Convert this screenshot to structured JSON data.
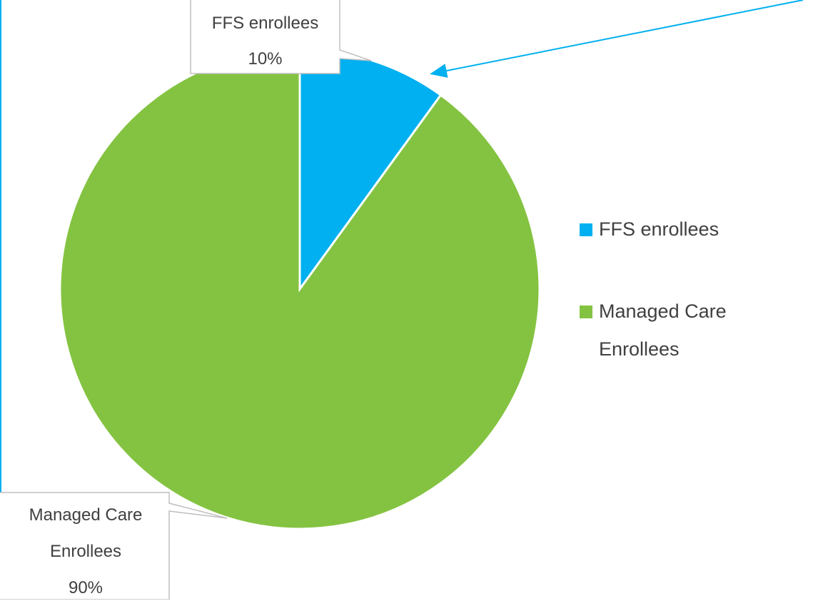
{
  "chart_data": {
    "type": "pie",
    "categories": [
      "FFS enrollees",
      "Managed Care Enrollees"
    ],
    "values": [
      10,
      90
    ],
    "value_labels": [
      "10%",
      "90%"
    ],
    "colors": [
      "#00b0f0",
      "#84c341"
    ],
    "legend": "right"
  }
}
